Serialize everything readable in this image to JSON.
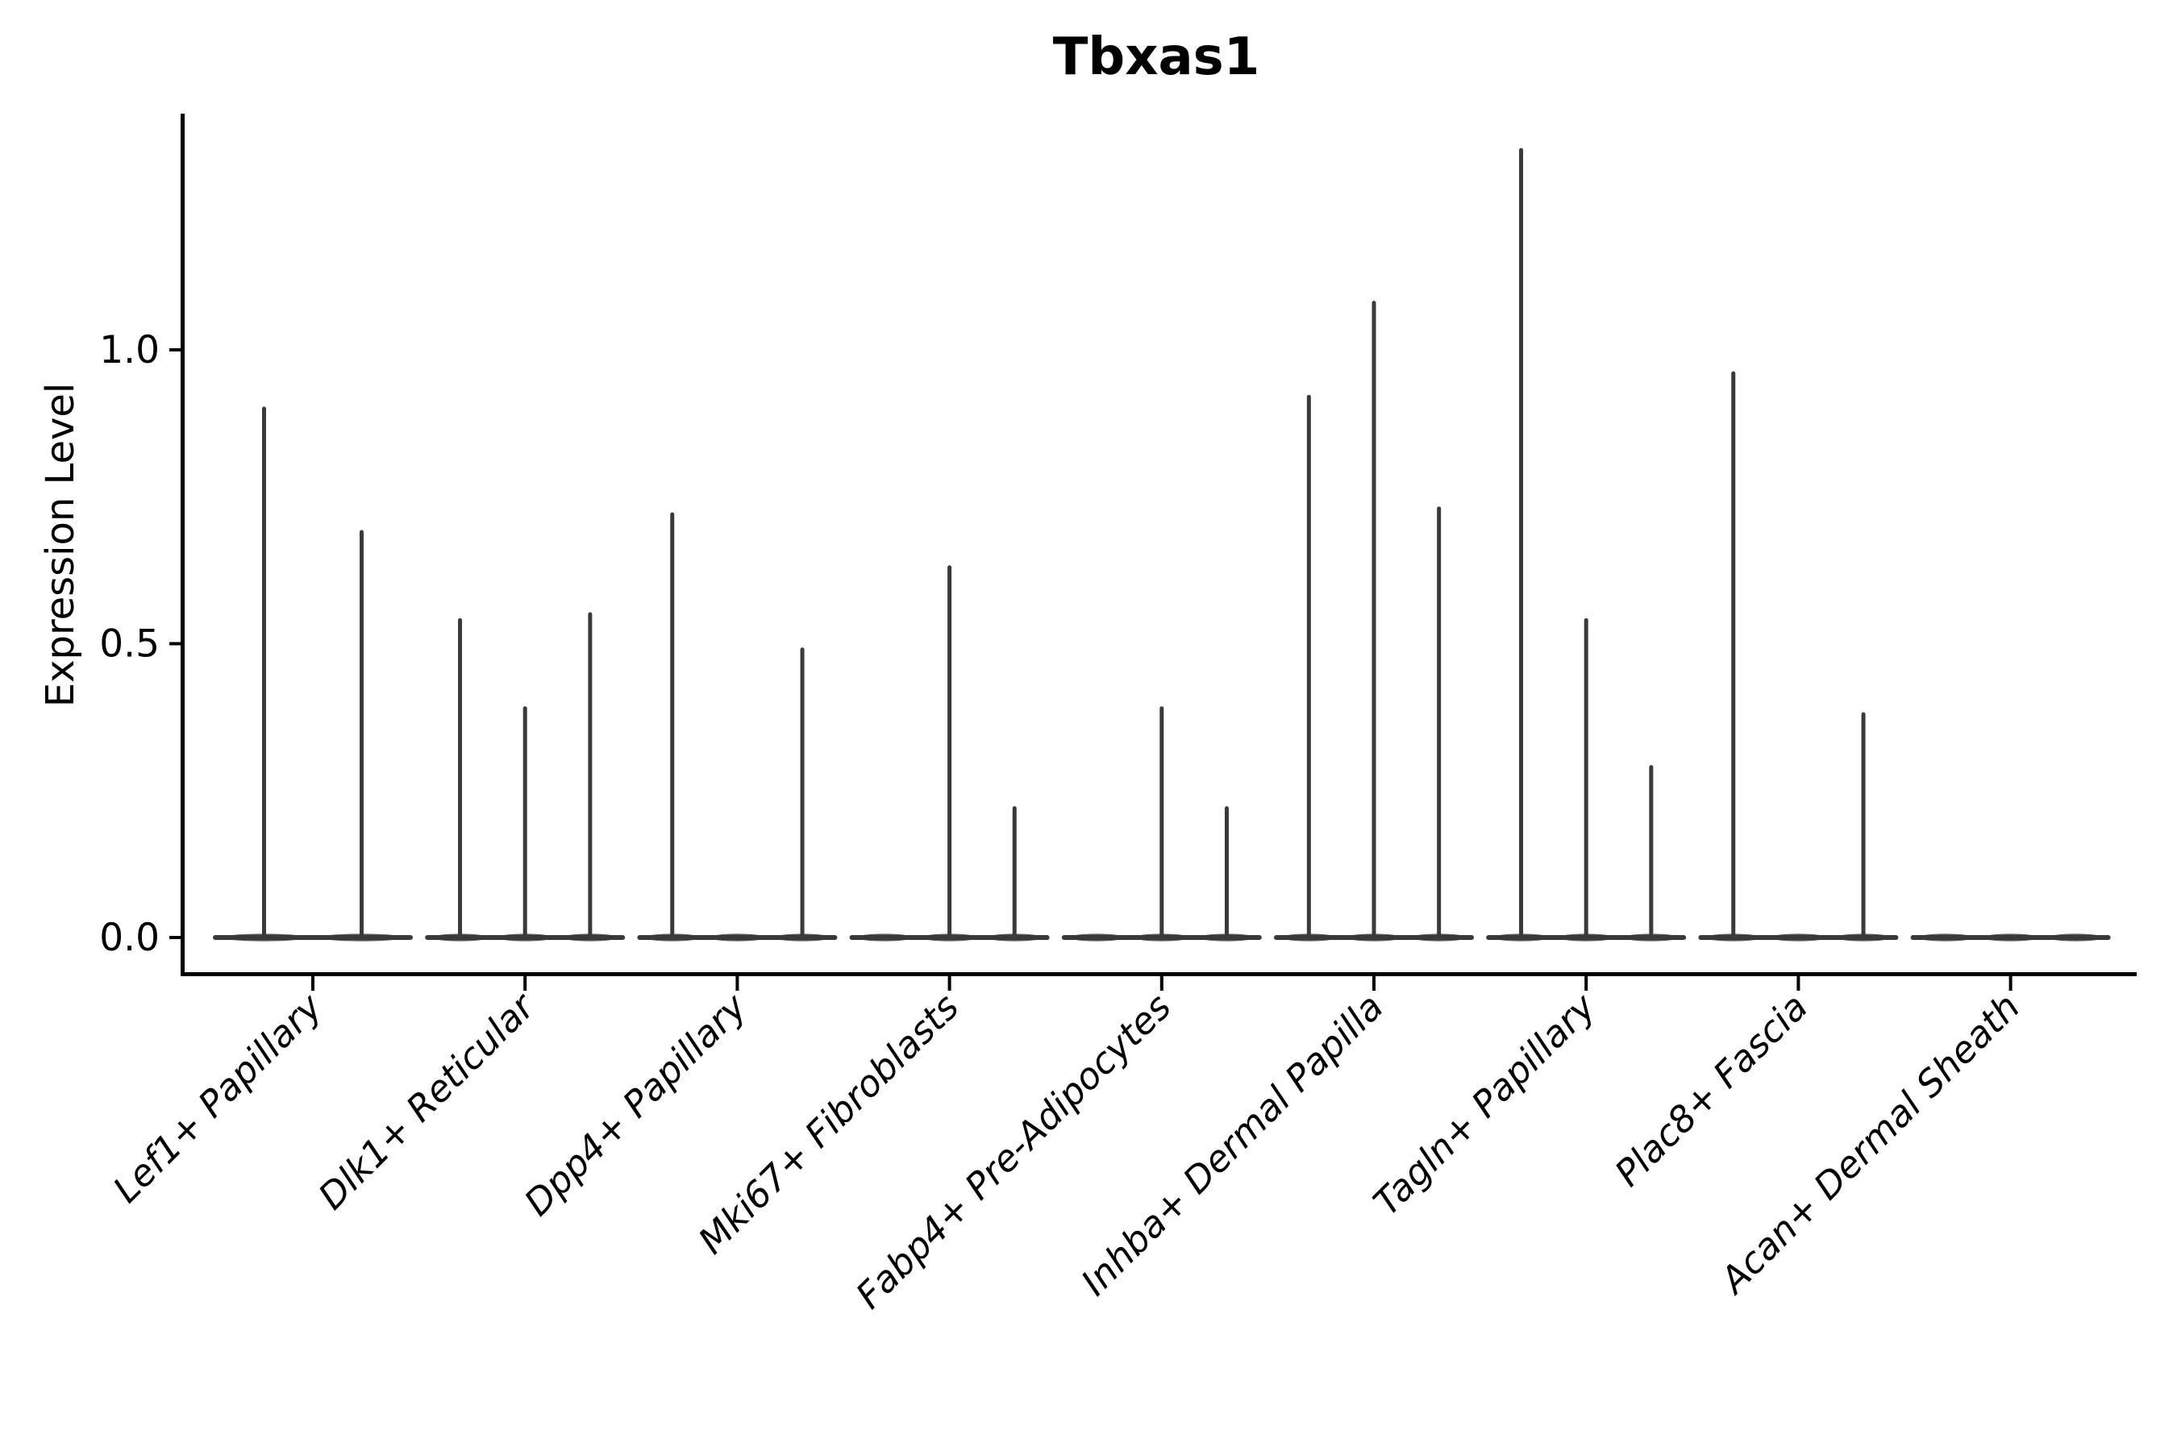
{
  "figure": {
    "background_color": "#ffffff"
  },
  "chart_data": {
    "type": "violin",
    "title": "Tbxas1",
    "xlabel": "",
    "ylabel": "Expression Level",
    "legend": "none",
    "grid": false,
    "ylim": [
      -0.066,
      1.402
    ],
    "y_ticks": [
      0.0,
      0.5,
      1.0
    ],
    "y_tick_labels": [
      "0.0",
      "0.5",
      "1.0"
    ],
    "x_tick_label_style": "italic, rotated 45deg, right-anchored",
    "categories": [
      "Lef1+ Papillary",
      "Dlk1+ Reticular",
      "Dpp4+ Papillary",
      "Mki67+ Fibroblasts",
      "Fabp4+ Pre-Adipocytes",
      "Inhba+ Dermal Papilla",
      "Tagln+ Papillary",
      "Plac8+ Fascia",
      "Acan+ Dermal Sheath"
    ],
    "groups": [
      {
        "label": "Lef1+ Papillary",
        "violin_max_values": [
          0.9,
          0.69
        ]
      },
      {
        "label": "Dlk1+ Reticular",
        "violin_max_values": [
          0.54,
          0.39,
          0.55
        ]
      },
      {
        "label": "Dpp4+ Papillary",
        "violin_max_values": [
          0.72,
          0.0,
          0.49
        ]
      },
      {
        "label": "Mki67+ Fibroblasts",
        "violin_max_values": [
          0.0,
          0.63,
          0.22
        ]
      },
      {
        "label": "Fabp4+ Pre-Adipocytes",
        "violin_max_values": [
          0.0,
          0.39,
          0.22
        ]
      },
      {
        "label": "Inhba+ Dermal Papilla",
        "violin_max_values": [
          0.92,
          1.08,
          0.73
        ]
      },
      {
        "label": "Tagln+ Papillary",
        "violin_max_values": [
          1.34,
          0.54,
          0.29
        ]
      },
      {
        "label": "Plac8+ Fascia",
        "violin_max_values": [
          0.96,
          0.0,
          0.38
        ]
      },
      {
        "label": "Acan+ Dermal Sheath",
        "violin_max_values": [
          0.0,
          0.0,
          0.0
        ]
      }
    ],
    "colors": {
      "violin": "#3a3a3a",
      "axis": "#000000",
      "text": "#000000",
      "background": "#ffffff"
    }
  }
}
